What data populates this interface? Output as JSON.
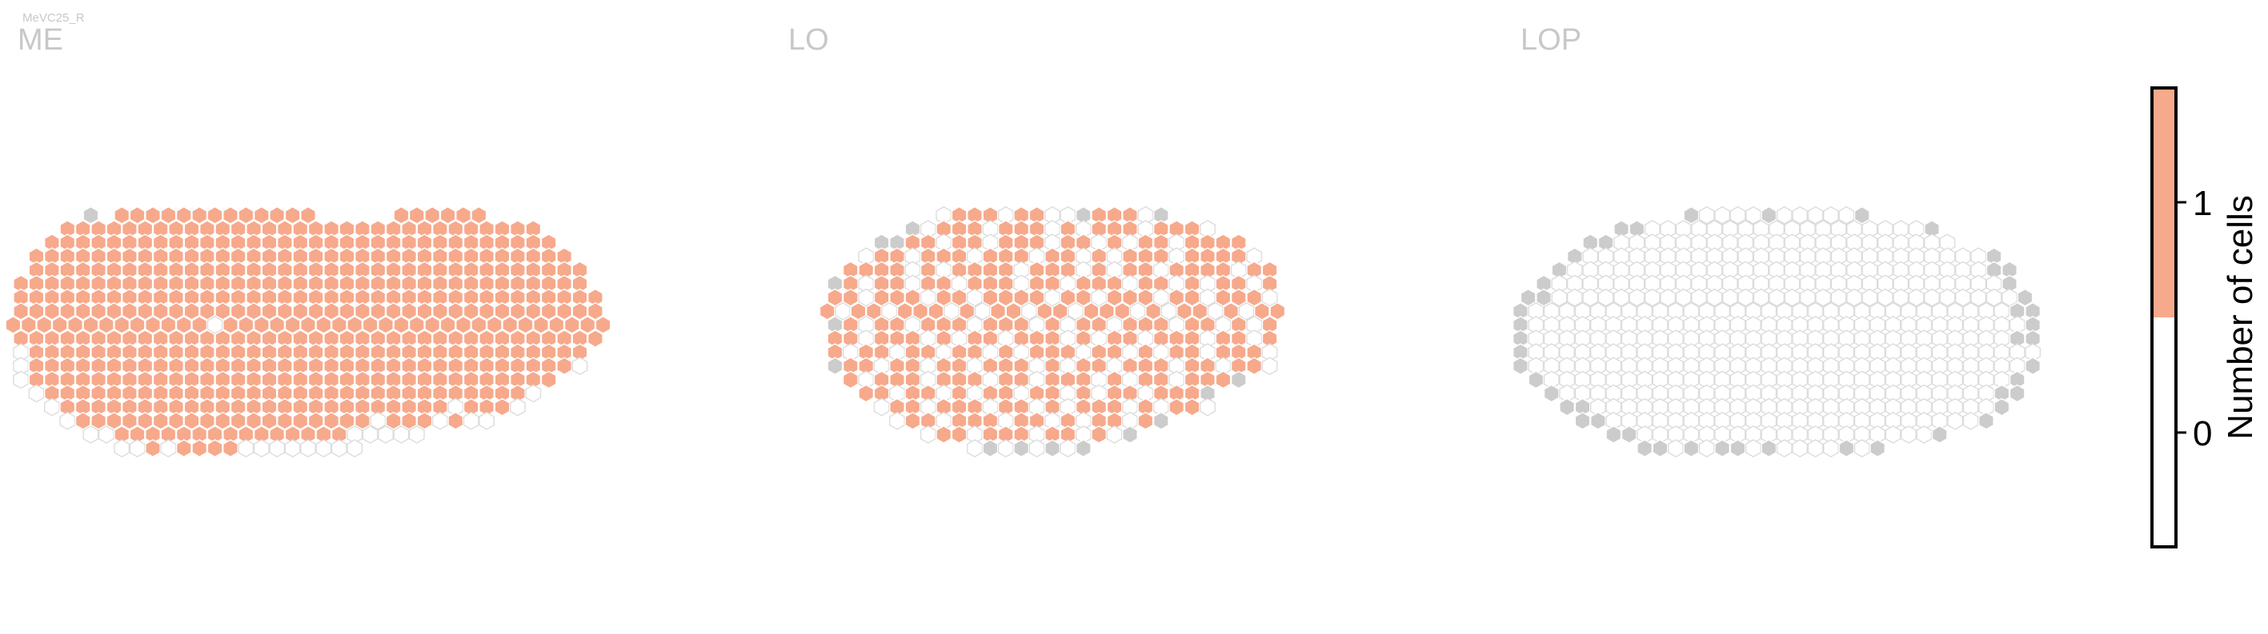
{
  "figure": {
    "cell_type_label": "MeVC25_R"
  },
  "colors": {
    "filled": "#f7a98b",
    "empty_fill": "#ffffff",
    "empty_stroke": "#dcdcdc",
    "no_column": "#cccccc",
    "title": "#c8c8c8",
    "axis": "#000000"
  },
  "chart_data": [
    {
      "type": "heatmap",
      "title": "ME",
      "value_map": {
        "1": "1 cell",
        "0": "0 cells",
        "g": "column absent in this neuropil"
      },
      "rows": 18,
      "cols": 36,
      "grid": [
        "....g.1111111111111.....111111.......",
        "...1111111111111111111111111111111....",
        "..111111111111111111111111111111111...",
        ".11111111111111111111111111111111111..",
        ".111111111111111111111111111111111111.",
        "1111111111111111111111111111111111111.",
        "11111111111111111111111111111111111111",
        "11111111111111111111111111111111111111",
        "111111111111101111111111111111111111111",
        "11111111111111111111111111111111111111",
        "0111111111111111111111111111111111111.",
        "0111111111111111111111111111111111110.",
        "01111111111111111111111111111111111...",
        ".011111111111111111111111111111110....",
        "..0111111111111111111111111101110.....",
        "...0111111111111111111101110100.......",
        "....0011111111111111100000...........",
        "......0010111100000000..............."
      ]
    },
    {
      "type": "heatmap",
      "title": "LO",
      "value_map": {
        "1": "1 cell",
        "0": "0 cells",
        "g": "column absent in this neuropil"
      },
      "rows": 18,
      "cols": 36,
      "grid": [
        ".......011101100g1110g.......",
        ".....g0111011101011101110....",
        "...gg1101101110110101101111..",
        "..01101110111011010111011110.",
        ".1111010111101110101101111011",
        "g1011011011101101110110101101",
        "11011101101111011011101101110",
        "101101110101101101110101101011",
        "g1011011101110101101110110101",
        "11011101011011101011011101101",
        "10110110110101110110101101110",
        "g1101101101110101101110110110",
        ".1011101110110111010110111g..",
        "..1101101011011010110111g....",
        "...0110111011010111010110....",
        "....01101110110101101g.......",
        "......0110111011010g.........",
        ".........0g0g0g0g............"
      ]
    },
    {
      "type": "heatmap",
      "title": "LOP",
      "value_map": {
        "1": "1 cell",
        "0": "0 cells",
        "g": "column absent in this neuropil"
      },
      "rows": 18,
      "cols": 36,
      "grid": [
        "..........g0000g00000g..........",
        "......gg000000000000000000g......",
        "....gg0000000000000000000000.....",
        "...g00000000000000000000000000g..",
        "..g000000000000000000000000000gg.",
        ".g00000000000000000000000000000g.",
        "gg000000000000000000000000000000g",
        "g0000000000000000000000000000000gg",
        "g00000000000000000000000000000000g",
        "g0000000000000000000000000000000gg",
        "g000000000000000000000000000000000",
        "g00000000000000000000000000000000g",
        ".g000000000000000000000000000000g.",
        "..g0000000000000000000000000000gg.",
        "...gg00000000000000000000000000g..",
        "....gg000000000000000000000000g...",
        "......gg0000000000000000000g......",
        "........gg0g0gg0g0000g0g.........."
      ]
    },
    {
      "type": "colorbar",
      "label": "Number of cells",
      "ticks": [
        "1",
        "0"
      ],
      "bins": [
        {
          "value": 1,
          "color": "#f7a98b"
        },
        {
          "value": 0,
          "color": "#ffffff"
        }
      ],
      "range": [
        -0.5,
        1.5
      ]
    }
  ]
}
